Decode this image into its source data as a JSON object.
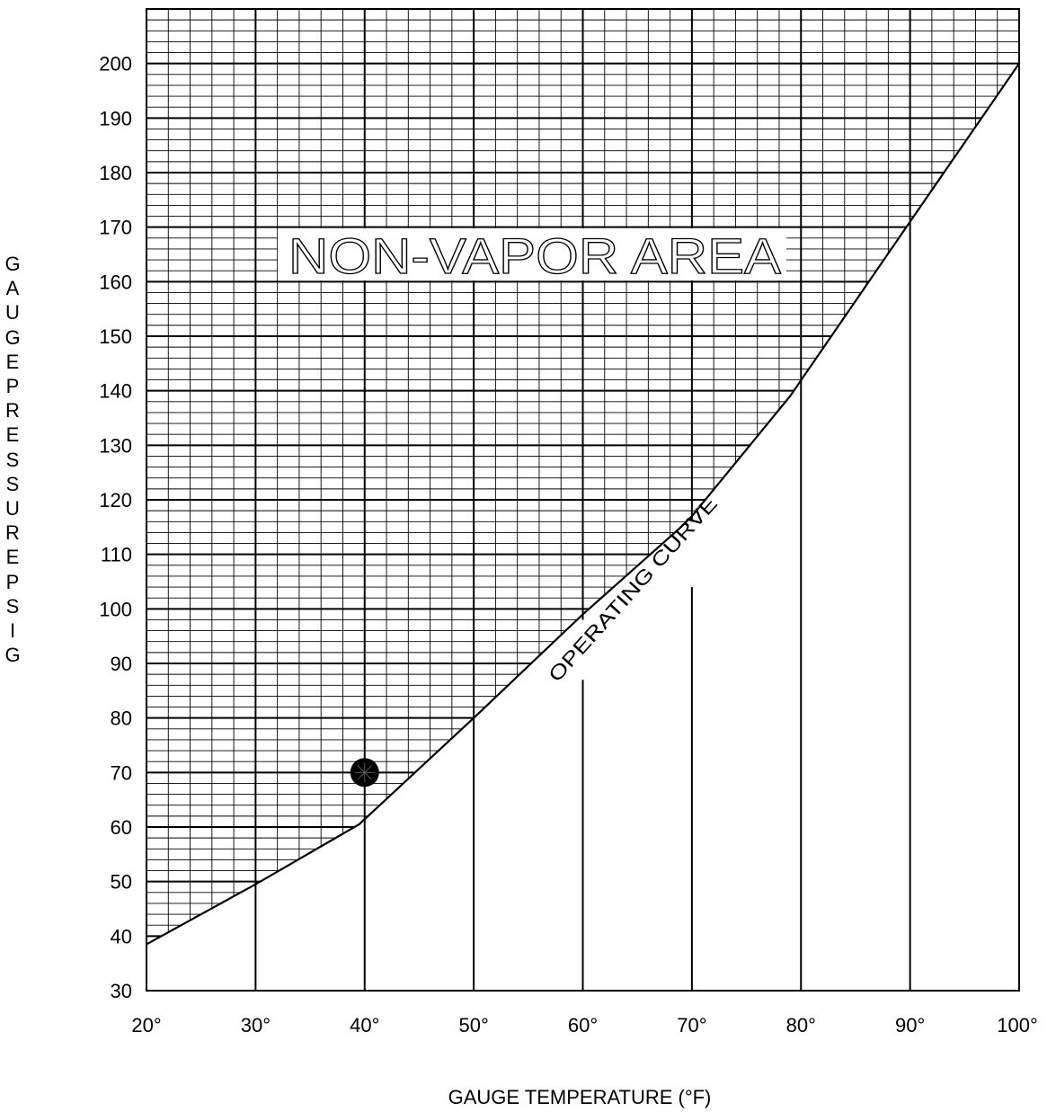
{
  "chart_data": {
    "type": "area",
    "title": "",
    "xlabel": "GAUGE TEMPERATURE (°F)",
    "ylabel": "GAUGE PRESSURE PSIG",
    "xlim": [
      20,
      100
    ],
    "ylim": [
      30,
      210
    ],
    "x_ticks": [
      20,
      30,
      40,
      50,
      60,
      70,
      80,
      90,
      100
    ],
    "x_tick_labels": [
      "20°",
      "30°",
      "40°",
      "50°",
      "60°",
      "70°",
      "80°",
      "90°",
      "100°"
    ],
    "y_ticks": [
      30,
      40,
      50,
      60,
      70,
      80,
      90,
      100,
      110,
      120,
      130,
      140,
      150,
      160,
      170,
      180,
      190,
      200
    ],
    "y_tick_labels": [
      "30",
      "40",
      "50",
      "60",
      "70",
      "80",
      "90",
      "100",
      "110",
      "120",
      "130",
      "140",
      "150",
      "160",
      "170",
      "180",
      "190",
      "200"
    ],
    "grid": true,
    "series": [
      {
        "name": "OPERATING CURVE",
        "x": [
          20,
          30,
          39.5,
          50,
          60,
          69,
          70,
          79,
          90,
          100
        ],
        "y": [
          38.5,
          49.5,
          60.5,
          80,
          99,
          115,
          117,
          139,
          171,
          200
        ]
      }
    ],
    "region_label": "NON-VAPOR AREA",
    "marker": {
      "x": 40,
      "y": 70
    }
  }
}
